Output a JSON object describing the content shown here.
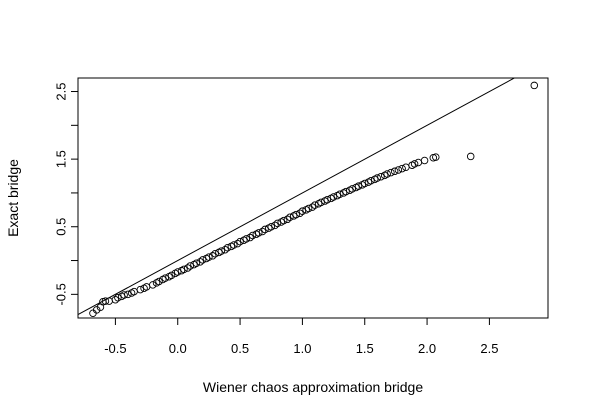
{
  "chart_data": {
    "type": "scatter",
    "title": "",
    "xlabel": "Wiener chaos approximation bridge",
    "ylabel": "Exact bridge",
    "xlim": [
      -0.8,
      2.97
    ],
    "ylim": [
      -0.85,
      2.7
    ],
    "x_ticks": [
      -0.5,
      0.0,
      0.5,
      1.0,
      1.5,
      2.0,
      2.5
    ],
    "x_tick_labels": [
      "-0.5",
      "0.0",
      "0.5",
      "1.0",
      "1.5",
      "2.0",
      "2.5"
    ],
    "y_ticks": [
      -0.5,
      0.0,
      0.5,
      1.0,
      1.5,
      2.0,
      2.5
    ],
    "y_tick_labels": [
      "-0.5",
      "",
      "0.5",
      "",
      "1.5",
      "",
      "2.5"
    ],
    "grid": false,
    "reference_line": {
      "intercept": 0,
      "slope": 1
    },
    "series": [
      {
        "points": [
          [
            -0.68,
            -0.78
          ],
          [
            -0.65,
            -0.73
          ],
          [
            -0.62,
            -0.69
          ],
          [
            -0.6,
            -0.61
          ],
          [
            -0.58,
            -0.6
          ],
          [
            -0.55,
            -0.6
          ],
          [
            -0.5,
            -0.58
          ],
          [
            -0.48,
            -0.55
          ],
          [
            -0.45,
            -0.53
          ],
          [
            -0.43,
            -0.51
          ],
          [
            -0.4,
            -0.5
          ],
          [
            -0.37,
            -0.48
          ],
          [
            -0.35,
            -0.46
          ],
          [
            -0.3,
            -0.43
          ],
          [
            -0.27,
            -0.41
          ],
          [
            -0.25,
            -0.39
          ],
          [
            -0.2,
            -0.36
          ],
          [
            -0.17,
            -0.33
          ],
          [
            -0.15,
            -0.31
          ],
          [
            -0.12,
            -0.28
          ],
          [
            -0.1,
            -0.26
          ],
          [
            -0.07,
            -0.24
          ],
          [
            -0.05,
            -0.22
          ],
          [
            -0.02,
            -0.19
          ],
          [
            0.0,
            -0.17
          ],
          [
            0.03,
            -0.15
          ],
          [
            0.05,
            -0.13
          ],
          [
            0.08,
            -0.11
          ],
          [
            0.1,
            -0.08
          ],
          [
            0.13,
            -0.06
          ],
          [
            0.15,
            -0.04
          ],
          [
            0.18,
            -0.02
          ],
          [
            0.2,
            0.01
          ],
          [
            0.23,
            0.03
          ],
          [
            0.25,
            0.05
          ],
          [
            0.28,
            0.07
          ],
          [
            0.3,
            0.1
          ],
          [
            0.33,
            0.12
          ],
          [
            0.35,
            0.14
          ],
          [
            0.38,
            0.16
          ],
          [
            0.4,
            0.19
          ],
          [
            0.43,
            0.21
          ],
          [
            0.45,
            0.23
          ],
          [
            0.48,
            0.25
          ],
          [
            0.5,
            0.28
          ],
          [
            0.53,
            0.3
          ],
          [
            0.55,
            0.32
          ],
          [
            0.58,
            0.34
          ],
          [
            0.6,
            0.37
          ],
          [
            0.63,
            0.39
          ],
          [
            0.65,
            0.41
          ],
          [
            0.68,
            0.43
          ],
          [
            0.7,
            0.46
          ],
          [
            0.73,
            0.48
          ],
          [
            0.75,
            0.5
          ],
          [
            0.78,
            0.52
          ],
          [
            0.8,
            0.55
          ],
          [
            0.83,
            0.57
          ],
          [
            0.85,
            0.59
          ],
          [
            0.88,
            0.61
          ],
          [
            0.9,
            0.64
          ],
          [
            0.93,
            0.66
          ],
          [
            0.95,
            0.68
          ],
          [
            0.98,
            0.7
          ],
          [
            1.0,
            0.73
          ],
          [
            1.03,
            0.75
          ],
          [
            1.05,
            0.77
          ],
          [
            1.08,
            0.79
          ],
          [
            1.1,
            0.82
          ],
          [
            1.13,
            0.84
          ],
          [
            1.15,
            0.86
          ],
          [
            1.18,
            0.88
          ],
          [
            1.2,
            0.9
          ],
          [
            1.23,
            0.92
          ],
          [
            1.25,
            0.94
          ],
          [
            1.28,
            0.96
          ],
          [
            1.3,
            0.98
          ],
          [
            1.33,
            1.0
          ],
          [
            1.35,
            1.02
          ],
          [
            1.38,
            1.04
          ],
          [
            1.4,
            1.06
          ],
          [
            1.43,
            1.08
          ],
          [
            1.45,
            1.1
          ],
          [
            1.48,
            1.12
          ],
          [
            1.5,
            1.14
          ],
          [
            1.53,
            1.16
          ],
          [
            1.55,
            1.18
          ],
          [
            1.58,
            1.2
          ],
          [
            1.6,
            1.22
          ],
          [
            1.63,
            1.24
          ],
          [
            1.66,
            1.26
          ],
          [
            1.68,
            1.28
          ],
          [
            1.71,
            1.3
          ],
          [
            1.74,
            1.32
          ],
          [
            1.77,
            1.34
          ],
          [
            1.8,
            1.36
          ],
          [
            1.83,
            1.38
          ],
          [
            1.88,
            1.41
          ],
          [
            1.9,
            1.43
          ],
          [
            1.93,
            1.45
          ],
          [
            1.98,
            1.48
          ],
          [
            2.05,
            1.52
          ],
          [
            2.07,
            1.53
          ],
          [
            2.35,
            1.54
          ],
          [
            2.86,
            2.59
          ]
        ]
      }
    ]
  }
}
